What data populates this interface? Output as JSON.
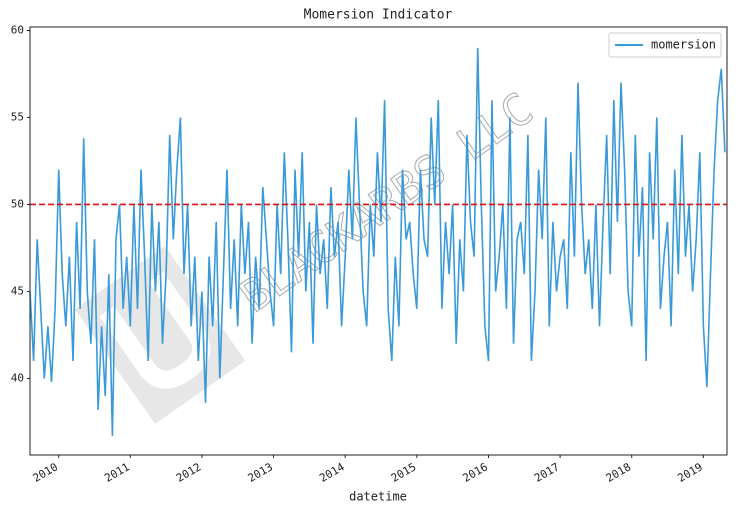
{
  "chart_data": {
    "type": "line",
    "title": "Momersion Indicator",
    "xlabel": "datetime",
    "watermark": "BLACKARBS LLC",
    "x": [
      2009.6,
      2009.65,
      2009.7,
      2009.75,
      2009.8,
      2009.85,
      2009.9,
      2009.95,
      2010,
      2010.05,
      2010.1,
      2010.15,
      2010.2,
      2010.25,
      2010.3,
      2010.35,
      2010.4,
      2010.45,
      2010.5,
      2010.55,
      2010.6,
      2010.65,
      2010.7,
      2010.75,
      2010.8,
      2010.85,
      2010.9,
      2010.95,
      2011,
      2011.05,
      2011.1,
      2011.15,
      2011.2,
      2011.25,
      2011.3,
      2011.35,
      2011.4,
      2011.45,
      2011.5,
      2011.55,
      2011.6,
      2011.65,
      2011.7,
      2011.75,
      2011.8,
      2011.85,
      2011.9,
      2011.95,
      2012,
      2012.05,
      2012.1,
      2012.15,
      2012.2,
      2012.25,
      2012.3,
      2012.35,
      2012.4,
      2012.45,
      2012.5,
      2012.55,
      2012.6,
      2012.65,
      2012.7,
      2012.75,
      2012.8,
      2012.85,
      2012.9,
      2012.95,
      2013,
      2013.05,
      2013.1,
      2013.15,
      2013.2,
      2013.25,
      2013.3,
      2013.35,
      2013.4,
      2013.45,
      2013.5,
      2013.55,
      2013.6,
      2013.65,
      2013.7,
      2013.75,
      2013.8,
      2013.85,
      2013.9,
      2013.95,
      2014,
      2014.05,
      2014.1,
      2014.15,
      2014.2,
      2014.25,
      2014.3,
      2014.35,
      2014.4,
      2014.45,
      2014.5,
      2014.55,
      2014.6,
      2014.65,
      2014.7,
      2014.75,
      2014.8,
      2014.85,
      2014.9,
      2014.95,
      2015,
      2015.05,
      2015.1,
      2015.15,
      2015.2,
      2015.25,
      2015.3,
      2015.35,
      2015.4,
      2015.45,
      2015.5,
      2015.55,
      2015.6,
      2015.65,
      2015.7,
      2015.75,
      2015.8,
      2015.85,
      2015.9,
      2015.95,
      2016,
      2016.05,
      2016.1,
      2016.15,
      2016.2,
      2016.25,
      2016.3,
      2016.35,
      2016.4,
      2016.45,
      2016.5,
      2016.55,
      2016.6,
      2016.65,
      2016.7,
      2016.75,
      2016.8,
      2016.85,
      2016.9,
      2016.95,
      2017,
      2017.05,
      2017.1,
      2017.15,
      2017.2,
      2017.25,
      2017.3,
      2017.35,
      2017.4,
      2017.45,
      2017.5,
      2017.55,
      2017.6,
      2017.65,
      2017.7,
      2017.75,
      2017.8,
      2017.85,
      2017.9,
      2017.95,
      2018,
      2018.05,
      2018.1,
      2018.15,
      2018.2,
      2018.25,
      2018.3,
      2018.35,
      2018.4,
      2018.45,
      2018.5,
      2018.55,
      2018.6,
      2018.65,
      2018.7,
      2018.75,
      2018.8,
      2018.85,
      2018.9,
      2018.95,
      2019,
      2019.05,
      2019.1,
      2019.15,
      2019.2,
      2019.25,
      2019.3
    ],
    "series": [
      {
        "name": "momersion",
        "color": "#3a9ad9",
        "values": [
          45,
          41,
          48,
          44,
          40,
          43,
          39.8,
          44,
          52,
          46,
          43,
          47,
          41,
          49,
          44,
          53.8,
          45,
          42,
          48,
          38.2,
          43,
          39,
          46,
          36.7,
          48,
          50,
          44,
          47,
          43,
          50,
          44,
          52,
          47,
          41,
          50,
          45,
          49,
          42,
          46,
          54,
          48,
          52,
          55,
          46,
          50,
          43,
          47,
          41,
          45,
          38.6,
          47,
          43,
          49,
          40,
          46,
          52,
          44,
          48,
          43,
          50,
          46,
          49,
          42,
          47,
          44,
          51,
          48,
          45,
          43,
          50,
          46,
          53,
          48,
          41.5,
          52,
          47,
          53,
          45,
          49,
          42,
          50,
          46,
          48,
          44,
          51,
          47,
          49,
          43,
          47,
          52,
          48,
          55,
          50,
          45,
          43,
          50,
          47,
          53,
          49,
          56,
          44,
          41,
          47,
          43,
          52,
          48,
          49,
          46,
          44,
          52,
          48,
          47,
          55,
          50,
          56,
          44,
          49,
          46,
          50,
          42,
          48,
          45,
          54,
          49,
          47,
          59,
          50,
          43,
          41,
          56,
          45,
          47,
          50,
          44,
          55,
          42,
          48,
          49,
          46,
          54,
          41,
          45,
          52,
          48,
          55,
          43,
          49,
          45,
          47,
          48,
          44,
          53,
          47,
          57,
          50,
          46,
          48,
          44,
          50,
          43,
          49,
          54,
          46,
          56,
          49,
          57,
          52,
          45,
          43,
          54,
          47,
          51,
          41,
          53,
          48,
          55,
          44,
          47,
          49,
          43,
          52,
          46,
          54,
          47,
          50,
          45,
          48,
          53,
          43,
          39.5,
          46,
          52,
          56,
          57.8,
          53
        ]
      }
    ],
    "hline": {
      "value": 50,
      "color": "#dd1111"
    },
    "xlim": [
      2009.6,
      2019.33
    ],
    "xticks": [
      2010,
      2011,
      2012,
      2013,
      2014,
      2015,
      2016,
      2017,
      2018,
      2019
    ],
    "ylim": [
      35.6,
      60.2
    ],
    "yticks": [
      40,
      45,
      50,
      55,
      60
    ],
    "legend": "upper right"
  }
}
